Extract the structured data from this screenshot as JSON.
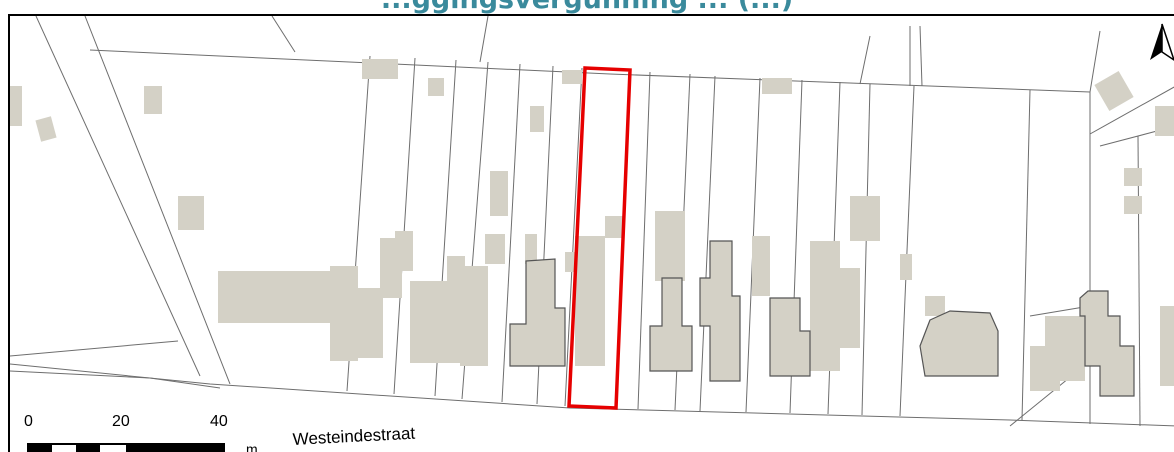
{
  "title": "...ggingsvergunning ... (...)",
  "map": {
    "street_label": "Westeindestraat",
    "north_arrow_icon": "north-arrow-icon",
    "scale_bar": {
      "ticks": [
        "0",
        "20",
        "40"
      ],
      "unit": "m"
    },
    "colors": {
      "building_fill": "#d4d1c6",
      "parcel_line": "#6e6e6e",
      "highlight": "#e60000",
      "title": "#3a8a9c"
    }
  }
}
